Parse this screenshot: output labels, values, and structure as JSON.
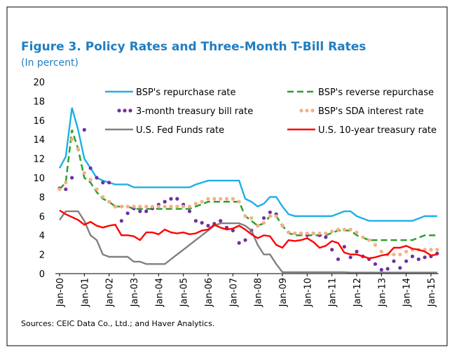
{
  "chart_data": {
    "type": "line",
    "title": "Figure 3. Policy Rates and Three-Month T-Bill Rates",
    "subtitle": "(In percent)",
    "source": "Sources: CEIC Data Co., Ltd.; and Haver Analytics.",
    "categories": [
      "Jan-00",
      null,
      null,
      null,
      "Jan-01",
      null,
      null,
      null,
      "Jan-02",
      null,
      null,
      null,
      "Jan-03",
      null,
      null,
      null,
      "Jan-04",
      null,
      null,
      null,
      "Jan-05",
      null,
      null,
      null,
      "Jan-06",
      null,
      null,
      null,
      "Jan-07",
      null,
      null,
      null,
      "Jan-08",
      null,
      null,
      null,
      "Jan-09",
      null,
      null,
      null,
      "Jan-10",
      null,
      null,
      null,
      "Jan-11",
      null,
      null,
      null,
      "Jan-12",
      null,
      null,
      null,
      "Jan-13",
      null,
      null,
      null,
      "Jan-14",
      null,
      null,
      null,
      "Jan-15",
      null
    ],
    "ylim": [
      0,
      20
    ],
    "yticks": [
      0,
      2,
      4,
      6,
      8,
      10,
      12,
      14,
      16,
      18,
      20
    ],
    "grid": false,
    "series": [
      {
        "name": "BSP's repurchase rate",
        "color": "#1cb0e6",
        "style": "solid",
        "values": [
          11,
          12.2,
          17.3,
          15,
          12,
          11,
          10,
          9.7,
          9.5,
          9.3,
          9.3,
          9.3,
          9,
          9,
          9,
          9,
          9,
          9,
          9,
          9,
          9,
          9,
          9.3,
          9.5,
          9.7,
          9.7,
          9.7,
          9.7,
          9.7,
          9.7,
          7.8,
          7.5,
          7,
          7.3,
          8,
          8,
          7,
          6.2,
          6,
          6,
          6,
          6,
          6,
          6,
          6,
          6.25,
          6.5,
          6.5,
          6,
          5.75,
          5.5,
          5.5,
          5.5,
          5.5,
          5.5,
          5.5,
          5.5,
          5.5,
          5.75,
          6,
          6,
          6
        ]
      },
      {
        "name": "BSP's reverse repurchase",
        "color": "#2ca02c",
        "style": "dashed",
        "values": [
          8.8,
          9.5,
          15,
          13,
          10,
          9.5,
          8.5,
          7.8,
          7.5,
          7,
          7,
          7,
          6.75,
          6.75,
          6.75,
          6.75,
          6.75,
          6.75,
          6.75,
          6.75,
          6.75,
          6.75,
          7,
          7.25,
          7.5,
          7.5,
          7.5,
          7.5,
          7.5,
          7.5,
          6,
          5.5,
          5,
          5.25,
          6,
          6,
          5,
          4.25,
          4,
          4,
          4,
          4,
          4,
          4,
          4.25,
          4.5,
          4.5,
          4.5,
          4,
          3.75,
          3.5,
          3.5,
          3.5,
          3.5,
          3.5,
          3.5,
          3.5,
          3.5,
          3.75,
          4,
          4,
          4
        ]
      },
      {
        "name": "3-month treasury bill rate",
        "color": "#7030a0",
        "style": "dots",
        "values": [
          8.9,
          8.8,
          10,
          13,
          15,
          11,
          10,
          9.5,
          9.5,
          7,
          5.5,
          6.3,
          6.8,
          6.5,
          6.5,
          6.8,
          7.2,
          7.5,
          7.8,
          7.8,
          7.2,
          6.5,
          5.5,
          5.3,
          5,
          5.2,
          5.5,
          4.8,
          4.5,
          3.2,
          3.5,
          4.5,
          5,
          5.8,
          6.4,
          6.2,
          5,
          4.3,
          4.2,
          4.2,
          4,
          4.2,
          4,
          3.8,
          2.5,
          1.5,
          2.8,
          1.7,
          2.3,
          1.8,
          1.5,
          1,
          0.4,
          0.5,
          1.3,
          0.6,
          1.3,
          1.8,
          1.5,
          1.7,
          1.8,
          2.1
        ]
      },
      {
        "name": "BSP's SDA interest rate",
        "color": "#f4b183",
        "style": "dots",
        "values": [
          8.8,
          9.5,
          14,
          13,
          10.5,
          9.8,
          8.8,
          8,
          7.5,
          7,
          7,
          7,
          7,
          7,
          7,
          7,
          7,
          7,
          7,
          7,
          7,
          7,
          7.3,
          7.5,
          7.8,
          7.8,
          7.8,
          7.8,
          7.8,
          7.5,
          6,
          5.8,
          5,
          5.3,
          6,
          6,
          5,
          4.3,
          4.2,
          4.2,
          4.2,
          4.2,
          4.2,
          4.2,
          4.4,
          4.6,
          4.6,
          4.6,
          4.3,
          3.8,
          3.5,
          3,
          2.3,
          2,
          2,
          2,
          2.3,
          2.5,
          2.5,
          2.5,
          2.5,
          2.5
        ]
      },
      {
        "name": "U.S. Fed Funds rate",
        "color": "#808080",
        "style": "solid",
        "values": [
          5.6,
          6.5,
          6.5,
          6.5,
          5.5,
          4,
          3.5,
          2,
          1.75,
          1.75,
          1.75,
          1.75,
          1.25,
          1.25,
          1,
          1,
          1,
          1,
          1.5,
          2,
          2.5,
          3,
          3.5,
          4,
          4.5,
          5,
          5.25,
          5.25,
          5.25,
          5.25,
          5,
          4.5,
          3,
          2,
          2,
          1,
          0.15,
          0.15,
          0.15,
          0.15,
          0.15,
          0.15,
          0.15,
          0.15,
          0.15,
          0.15,
          0.15,
          0.12,
          0.12,
          0.12,
          0.12,
          0.12,
          0.12,
          0.12,
          0.12,
          0.12,
          0.12,
          0.12,
          0.12,
          0.12,
          0.12,
          0.12
        ]
      },
      {
        "name": "U.S. 10-year treasury rate",
        "color": "#ff0000",
        "style": "solid",
        "values": [
          6.6,
          6.2,
          5.9,
          5.6,
          5.1,
          5.4,
          5,
          4.8,
          5,
          5.1,
          4,
          4,
          3.9,
          3.5,
          4.3,
          4.3,
          4.1,
          4.6,
          4.3,
          4.2,
          4.3,
          4.1,
          4.2,
          4.5,
          4.6,
          5.1,
          4.8,
          4.6,
          4.7,
          5,
          4.6,
          4.1,
          3.7,
          4,
          3.9,
          3,
          2.7,
          3.5,
          3.4,
          3.5,
          3.7,
          3.3,
          2.7,
          2.9,
          3.4,
          3.2,
          2.2,
          2,
          2,
          1.8,
          1.6,
          1.7,
          1.9,
          2,
          2.7,
          2.7,
          2.9,
          2.6,
          2.5,
          2.3,
          1.9,
          2
        ]
      }
    ]
  }
}
